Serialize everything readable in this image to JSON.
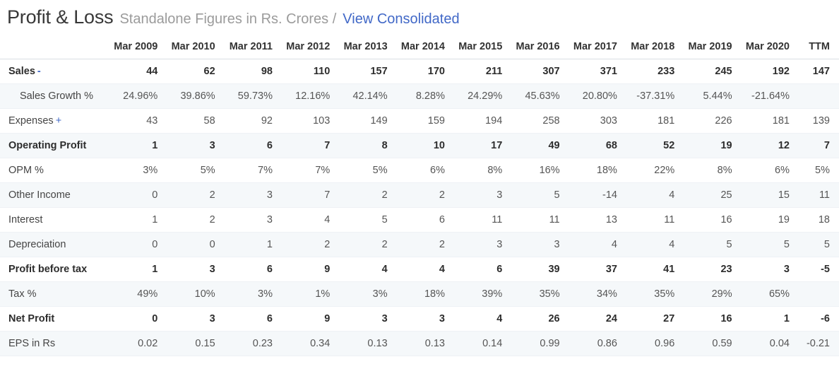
{
  "header": {
    "title": "Profit & Loss",
    "subtitle": "Standalone Figures in Rs. Crores /",
    "link_label": "View Consolidated"
  },
  "colors": {
    "accent_blue": "#4168c7",
    "stripe_row": "#f5f8fa",
    "header_border": "#d9dee3",
    "bold_text": "#2d2d2d",
    "normal_text": "#555555",
    "subtitle_gray": "#9b9b9b"
  },
  "chart_data": {
    "type": "table",
    "title": "Profit & Loss — Standalone Figures in Rs. Crores",
    "columns": [
      "Mar 2009",
      "Mar 2010",
      "Mar 2011",
      "Mar 2012",
      "Mar 2013",
      "Mar 2014",
      "Mar 2015",
      "Mar 2016",
      "Mar 2017",
      "Mar 2018",
      "Mar 2019",
      "Mar 2020",
      "TTM"
    ],
    "rows": [
      {
        "label": "Sales",
        "suffix": "-",
        "bold": true,
        "indent": false,
        "values": [
          "44",
          "62",
          "98",
          "110",
          "157",
          "170",
          "211",
          "307",
          "371",
          "233",
          "245",
          "192",
          "147"
        ]
      },
      {
        "label": "Sales Growth %",
        "suffix": "",
        "bold": false,
        "indent": true,
        "values": [
          "24.96%",
          "39.86%",
          "59.73%",
          "12.16%",
          "42.14%",
          "8.28%",
          "24.29%",
          "45.63%",
          "20.80%",
          "-37.31%",
          "5.44%",
          "-21.64%",
          ""
        ]
      },
      {
        "label": "Expenses",
        "suffix": "+",
        "bold": false,
        "indent": false,
        "values": [
          "43",
          "58",
          "92",
          "103",
          "149",
          "159",
          "194",
          "258",
          "303",
          "181",
          "226",
          "181",
          "139"
        ]
      },
      {
        "label": "Operating Profit",
        "suffix": "",
        "bold": true,
        "indent": false,
        "values": [
          "1",
          "3",
          "6",
          "7",
          "8",
          "10",
          "17",
          "49",
          "68",
          "52",
          "19",
          "12",
          "7"
        ]
      },
      {
        "label": "OPM %",
        "suffix": "",
        "bold": false,
        "indent": false,
        "values": [
          "3%",
          "5%",
          "7%",
          "7%",
          "5%",
          "6%",
          "8%",
          "16%",
          "18%",
          "22%",
          "8%",
          "6%",
          "5%"
        ]
      },
      {
        "label": "Other Income",
        "suffix": "",
        "bold": false,
        "indent": false,
        "values": [
          "0",
          "2",
          "3",
          "7",
          "2",
          "2",
          "3",
          "5",
          "-14",
          "4",
          "25",
          "15",
          "11"
        ]
      },
      {
        "label": "Interest",
        "suffix": "",
        "bold": false,
        "indent": false,
        "values": [
          "1",
          "2",
          "3",
          "4",
          "5",
          "6",
          "11",
          "11",
          "13",
          "11",
          "16",
          "19",
          "18"
        ]
      },
      {
        "label": "Depreciation",
        "suffix": "",
        "bold": false,
        "indent": false,
        "values": [
          "0",
          "0",
          "1",
          "2",
          "2",
          "2",
          "3",
          "3",
          "4",
          "4",
          "5",
          "5",
          "5"
        ]
      },
      {
        "label": "Profit before tax",
        "suffix": "",
        "bold": true,
        "indent": false,
        "values": [
          "1",
          "3",
          "6",
          "9",
          "4",
          "4",
          "6",
          "39",
          "37",
          "41",
          "23",
          "3",
          "-5"
        ]
      },
      {
        "label": "Tax %",
        "suffix": "",
        "bold": false,
        "indent": false,
        "values": [
          "49%",
          "10%",
          "3%",
          "1%",
          "3%",
          "18%",
          "39%",
          "35%",
          "34%",
          "35%",
          "29%",
          "65%",
          ""
        ]
      },
      {
        "label": "Net Profit",
        "suffix": "",
        "bold": true,
        "indent": false,
        "values": [
          "0",
          "3",
          "6",
          "9",
          "3",
          "3",
          "4",
          "26",
          "24",
          "27",
          "16",
          "1",
          "-6"
        ]
      },
      {
        "label": "EPS in Rs",
        "suffix": "",
        "bold": false,
        "indent": false,
        "values": [
          "0.02",
          "0.15",
          "0.23",
          "0.34",
          "0.13",
          "0.13",
          "0.14",
          "0.99",
          "0.86",
          "0.96",
          "0.59",
          "0.04",
          "-0.21"
        ]
      }
    ]
  }
}
